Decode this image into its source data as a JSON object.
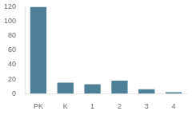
{
  "chart_data": {
    "type": "bar",
    "categories": [
      "PK",
      "K",
      "1",
      "2",
      "3",
      "4"
    ],
    "values": [
      120,
      15,
      13,
      18,
      6,
      2
    ],
    "color": "#4d7f96",
    "ylim": [
      0,
      120
    ],
    "yticks": [
      0,
      20,
      40,
      60,
      80,
      100,
      120
    ],
    "grid": false
  }
}
